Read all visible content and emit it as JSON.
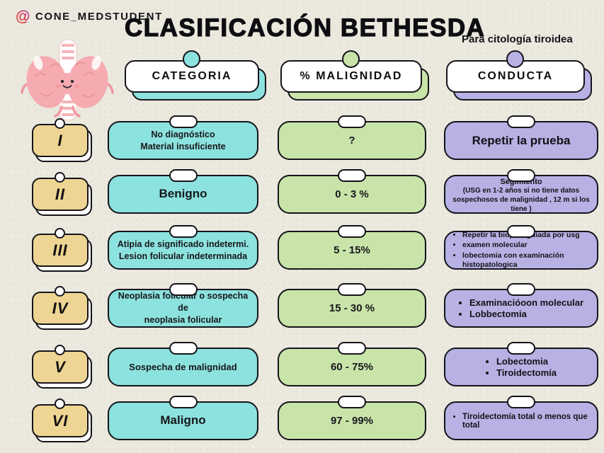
{
  "header": {
    "handle": "CONE_MEDSTUDENT",
    "title": "CLASIFICACIÓN BETHESDA",
    "subtitle": "Para citología tiroidea"
  },
  "icons": {
    "at_symbol": "@",
    "mascot": "thyroid-gland-mascot"
  },
  "columns": [
    {
      "id": "categoria",
      "label": "CATEGORIA"
    },
    {
      "id": "malignidad",
      "label": "% MALIGNIDAD"
    },
    {
      "id": "conducta",
      "label": "CONDUCTA"
    }
  ],
  "rows": [
    {
      "numeral": "I",
      "categoria": [
        "No diagnóstico",
        "Material insuficiente"
      ],
      "malignidad": "?",
      "conducta": {
        "text": "Repetir la prueba"
      }
    },
    {
      "numeral": "II",
      "categoria": [
        "Benigno"
      ],
      "malignidad": "0 - 3 %",
      "conducta": {
        "title": "Segimiento",
        "note": "(USG en 1-2 años si no tiene datos sospechosos de malignidad , 12 m si los tiene )"
      }
    },
    {
      "numeral": "III",
      "categoria": [
        "Atipia de significado indetermi.",
        "Lesion folicular indeterminada"
      ],
      "malignidad": "5 - 15%",
      "conducta": {
        "bullets": [
          "Repetir la biopsia guiada por usg",
          "examen molecular",
          "lobectomia con examinación histopatologica"
        ]
      }
    },
    {
      "numeral": "IV",
      "categoria": [
        "Neoplasia folicular o sospecha de",
        "neoplasia folicular"
      ],
      "malignidad": "15 - 30 %",
      "conducta": {
        "bullets": [
          "Examinacióoon molecular",
          "Lobbectomia"
        ]
      }
    },
    {
      "numeral": "V",
      "categoria": [
        "Sospecha de malignidad"
      ],
      "malignidad": "60 - 75%",
      "conducta": {
        "bullets": [
          "Lobectomia",
          "Tiroidectomía"
        ]
      }
    },
    {
      "numeral": "VI",
      "categoria": [
        "Maligno"
      ],
      "malignidad": "97 - 99%",
      "conducta": {
        "bullets": [
          "Tiroidectomía total o menos que total"
        ]
      }
    }
  ],
  "colors": {
    "background": "#ebe8de",
    "teal": "#8ce2de",
    "green": "#c8e4a9",
    "purple": "#b7b1e4",
    "tan": "#eed593",
    "ink": "#14141a"
  }
}
